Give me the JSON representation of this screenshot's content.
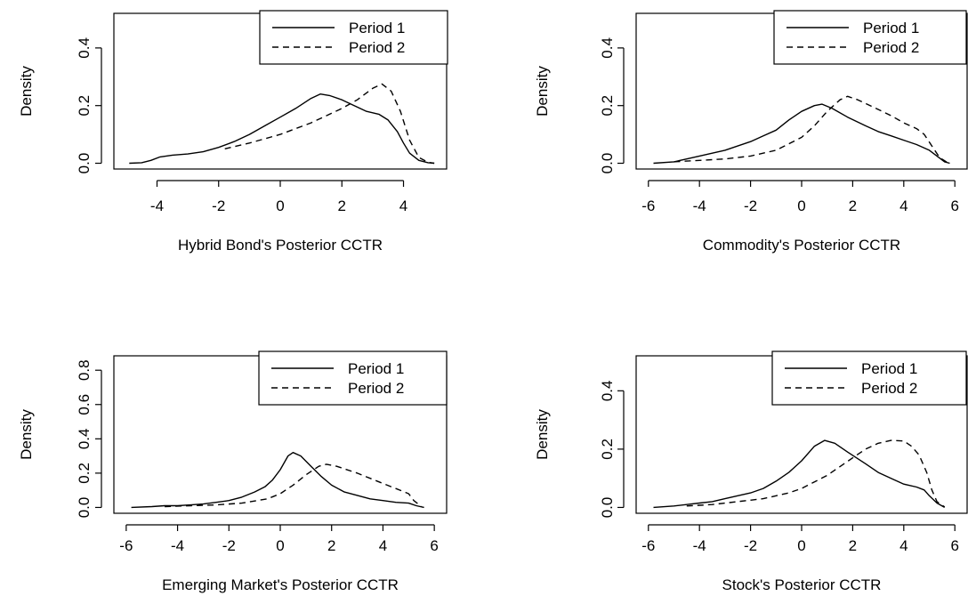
{
  "figure": {
    "background": "#ffffff"
  },
  "chart_data": [
    {
      "type": "line",
      "title": "",
      "xlabel": "Hybrid Bond's Posterior CCTR",
      "ylabel": "Density",
      "xlim": [
        -5,
        5
      ],
      "ylim": [
        0,
        0.5
      ],
      "xticks": [
        -4,
        -2,
        0,
        2,
        4
      ],
      "yticks": [
        0.0,
        0.2,
        0.4
      ],
      "ytick_labels": [
        "0.0",
        "0.2",
        "0.4"
      ],
      "legend": {
        "position": "top-right",
        "entries": [
          "Period 1",
          "Period 2"
        ]
      },
      "series": [
        {
          "name": "Period 1",
          "style": "solid",
          "x": [
            -4.9,
            -4.5,
            -4.2,
            -3.9,
            -3.5,
            -3.0,
            -2.5,
            -2.0,
            -1.5,
            -1.0,
            -0.5,
            0.0,
            0.5,
            1.0,
            1.3,
            1.6,
            2.0,
            2.4,
            2.8,
            3.2,
            3.5,
            3.8,
            4.0,
            4.2,
            4.5,
            4.8,
            5.0
          ],
          "y": [
            0.0,
            0.002,
            0.01,
            0.022,
            0.028,
            0.032,
            0.04,
            0.055,
            0.075,
            0.1,
            0.13,
            0.16,
            0.19,
            0.225,
            0.24,
            0.235,
            0.22,
            0.2,
            0.18,
            0.17,
            0.15,
            0.11,
            0.07,
            0.035,
            0.01,
            0.002,
            0.0
          ]
        },
        {
          "name": "Period 2",
          "style": "dashed",
          "x": [
            -1.8,
            -1.0,
            0.0,
            1.0,
            2.0,
            2.5,
            3.0,
            3.3,
            3.6,
            3.9,
            4.2,
            4.5,
            4.8,
            5.0
          ],
          "y": [
            0.05,
            0.07,
            0.1,
            0.14,
            0.19,
            0.22,
            0.26,
            0.275,
            0.25,
            0.18,
            0.08,
            0.02,
            0.003,
            0.0
          ]
        }
      ]
    },
    {
      "type": "line",
      "title": "",
      "xlabel": "Commodity's Posterior CCTR",
      "ylabel": "Density",
      "xlim": [
        -6,
        6
      ],
      "ylim": [
        0,
        0.5
      ],
      "xticks": [
        -6,
        -4,
        -2,
        0,
        2,
        4,
        6
      ],
      "yticks": [
        0.0,
        0.2,
        0.4
      ],
      "ytick_labels": [
        "0.0",
        "0.2",
        "0.4"
      ],
      "legend": {
        "position": "top-right",
        "entries": [
          "Period 1",
          "Period 2"
        ]
      },
      "series": [
        {
          "name": "Period 1",
          "style": "solid",
          "x": [
            -5.8,
            -5.0,
            -4.5,
            -4.0,
            -3.5,
            -3.0,
            -2.5,
            -2.0,
            -1.5,
            -1.0,
            -0.5,
            0.0,
            0.5,
            0.8,
            1.2,
            1.8,
            2.5,
            3.0,
            3.5,
            4.0,
            4.5,
            5.0,
            5.3,
            5.6,
            5.8
          ],
          "y": [
            0.0,
            0.005,
            0.015,
            0.025,
            0.035,
            0.045,
            0.06,
            0.075,
            0.095,
            0.115,
            0.15,
            0.18,
            0.2,
            0.205,
            0.19,
            0.16,
            0.13,
            0.11,
            0.095,
            0.08,
            0.065,
            0.045,
            0.025,
            0.005,
            0.0
          ]
        },
        {
          "name": "Period 2",
          "style": "dashed",
          "x": [
            -5.0,
            -4.0,
            -3.0,
            -2.0,
            -1.0,
            0.0,
            0.5,
            1.0,
            1.5,
            1.8,
            2.2,
            2.8,
            3.5,
            4.0,
            4.5,
            4.8,
            5.1,
            5.4,
            5.7
          ],
          "y": [
            0.005,
            0.01,
            0.015,
            0.025,
            0.045,
            0.09,
            0.13,
            0.18,
            0.22,
            0.232,
            0.22,
            0.195,
            0.165,
            0.14,
            0.12,
            0.1,
            0.06,
            0.02,
            0.003
          ]
        }
      ]
    },
    {
      "type": "line",
      "title": "",
      "xlabel": "Emerging Market's Posterior CCTR",
      "ylabel": "Density",
      "xlim": [
        -6,
        6
      ],
      "ylim": [
        0,
        0.85
      ],
      "xticks": [
        -6,
        -4,
        -2,
        0,
        2,
        4,
        6
      ],
      "yticks": [
        0.0,
        0.2,
        0.4,
        0.6,
        0.8
      ],
      "ytick_labels": [
        "0.0",
        "0.2",
        "0.4",
        "0.6",
        "0.8"
      ],
      "legend": {
        "position": "top-right",
        "entries": [
          "Period 1",
          "Period 2"
        ]
      },
      "series": [
        {
          "name": "Period 1",
          "style": "solid",
          "x": [
            -5.8,
            -5.0,
            -4.5,
            -4.0,
            -3.5,
            -3.0,
            -2.5,
            -2.0,
            -1.5,
            -1.0,
            -0.6,
            -0.3,
            0.0,
            0.3,
            0.5,
            0.8,
            1.2,
            1.6,
            2.0,
            2.5,
            3.0,
            3.5,
            4.0,
            4.5,
            5.0,
            5.3,
            5.6
          ],
          "y": [
            0.0,
            0.005,
            0.01,
            0.01,
            0.015,
            0.02,
            0.03,
            0.04,
            0.06,
            0.09,
            0.12,
            0.16,
            0.22,
            0.3,
            0.32,
            0.3,
            0.24,
            0.18,
            0.13,
            0.09,
            0.07,
            0.05,
            0.04,
            0.03,
            0.025,
            0.01,
            0.0
          ]
        },
        {
          "name": "Period 2",
          "style": "dashed",
          "x": [
            -4.5,
            -3.5,
            -2.5,
            -1.5,
            -0.5,
            0.0,
            0.5,
            1.0,
            1.5,
            1.8,
            2.2,
            3.0,
            3.5,
            4.0,
            4.5,
            5.0,
            5.2,
            5.5
          ],
          "y": [
            0.005,
            0.01,
            0.015,
            0.025,
            0.05,
            0.08,
            0.13,
            0.19,
            0.24,
            0.252,
            0.24,
            0.2,
            0.17,
            0.14,
            0.11,
            0.08,
            0.04,
            0.005
          ]
        }
      ]
    },
    {
      "type": "line",
      "title": "",
      "xlabel": "Stock's Posterior CCTR",
      "ylabel": "Density",
      "xlim": [
        -6,
        6
      ],
      "ylim": [
        0,
        0.5
      ],
      "xticks": [
        -6,
        -4,
        -2,
        0,
        2,
        4,
        6
      ],
      "yticks": [
        0.0,
        0.2,
        0.4
      ],
      "ytick_labels": [
        "0.0",
        "0.2",
        "0.4"
      ],
      "legend": {
        "position": "top-right",
        "entries": [
          "Period 1",
          "Period 2"
        ]
      },
      "series": [
        {
          "name": "Period 1",
          "style": "solid",
          "x": [
            -5.8,
            -5.0,
            -4.5,
            -4.0,
            -3.5,
            -3.0,
            -2.5,
            -2.0,
            -1.5,
            -1.0,
            -0.5,
            0.0,
            0.5,
            0.9,
            1.3,
            1.8,
            2.5,
            3.0,
            3.5,
            4.0,
            4.5,
            4.8,
            5.0,
            5.3,
            5.6
          ],
          "y": [
            0.0,
            0.005,
            0.01,
            0.015,
            0.02,
            0.03,
            0.04,
            0.05,
            0.065,
            0.09,
            0.12,
            0.16,
            0.21,
            0.23,
            0.22,
            0.19,
            0.15,
            0.12,
            0.1,
            0.08,
            0.07,
            0.06,
            0.04,
            0.015,
            0.0
          ]
        },
        {
          "name": "Period 2",
          "style": "dashed",
          "x": [
            -4.5,
            -3.5,
            -2.5,
            -1.5,
            -0.5,
            0.0,
            1.0,
            2.0,
            2.5,
            3.0,
            3.5,
            4.0,
            4.3,
            4.6,
            4.9,
            5.1,
            5.3,
            5.6
          ],
          "y": [
            0.005,
            0.01,
            0.02,
            0.03,
            0.05,
            0.065,
            0.11,
            0.17,
            0.2,
            0.22,
            0.23,
            0.228,
            0.21,
            0.18,
            0.12,
            0.06,
            0.02,
            0.002
          ]
        }
      ]
    }
  ]
}
